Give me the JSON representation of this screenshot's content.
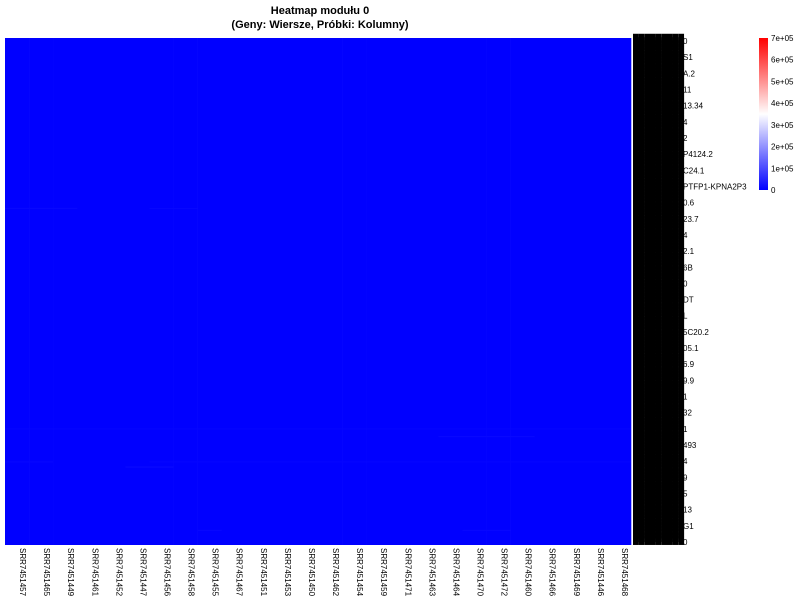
{
  "chart_data": {
    "type": "heatmap",
    "title": "Heatmap modułu 0",
    "subtitle": "(Geny: Wiersze, Próbki: Kolumny)",
    "columns": [
      "SRR7451457",
      "SRR7451465",
      "SRR7451449",
      "SRR7451461",
      "SRR7451452",
      "SRR7451447",
      "SRR7451456",
      "SRR7451458",
      "SRR7451455",
      "SRR7451467",
      "SRR7451451",
      "SRR7451453",
      "SRR7451450",
      "SRR7451462",
      "SRR7451454",
      "SRR7451459",
      "SRR7451471",
      "SRR7451463",
      "SRR7451464",
      "SRR7451470",
      "SRR7451472",
      "SRR7451460",
      "SRR7451466",
      "SRR7451469",
      "SRR7451446",
      "SRR7451468"
    ],
    "visible_row_labels": [
      "0",
      "S1",
      "A.2",
      "11",
      "13.34",
      "4",
      "2",
      "P4124.2",
      "C24.1",
      "PTFP1-KPNA2P3",
      "0.6",
      "23.7",
      "4",
      "2.1",
      "6B",
      "0",
      "DT",
      "L",
      "5C20.2",
      "05.1",
      "6.9",
      "9.9",
      "1",
      "32",
      "1",
      "493",
      "4",
      "9",
      "5",
      "13",
      "G1",
      "0"
    ],
    "value_range": [
      0,
      700000
    ],
    "colormap": [
      "#0000ff",
      "#ffffff",
      "#ff0000"
    ],
    "legend": {
      "ticks": [
        0,
        100000,
        200000,
        300000,
        400000,
        500000,
        600000,
        700000
      ],
      "tick_labels": [
        "0",
        "1e+05",
        "2e+05",
        "3e+05",
        "4e+05",
        "5e+05",
        "6e+05",
        "7e+05"
      ],
      "position": "top-right"
    },
    "values_note": "all cells near 0 (uniform blue) with faint lighter streaks",
    "streaks": [
      {
        "row_frac": 0.335,
        "col_start": 0,
        "col_end": 3,
        "value": 9000
      },
      {
        "row_frac": 0.335,
        "col_start": 6,
        "col_end": 8,
        "value": 8000
      },
      {
        "row_frac": 0.77,
        "col_start": 0,
        "col_end": 26,
        "value": 7000
      },
      {
        "row_frac": 0.785,
        "col_start": 18,
        "col_end": 22,
        "value": 9000
      },
      {
        "row_frac": 0.835,
        "col_start": 0,
        "col_end": 2,
        "value": 8000
      },
      {
        "row_frac": 0.835,
        "col_start": 6,
        "col_end": 26,
        "value": 7000
      },
      {
        "row_frac": 0.845,
        "col_start": 5,
        "col_end": 7,
        "value": 12000
      },
      {
        "row_frac": 0.97,
        "col_start": 8,
        "col_end": 9,
        "value": 10000
      },
      {
        "row_frac": 0.97,
        "col_start": 19,
        "col_end": 21,
        "value": 9000
      }
    ]
  }
}
